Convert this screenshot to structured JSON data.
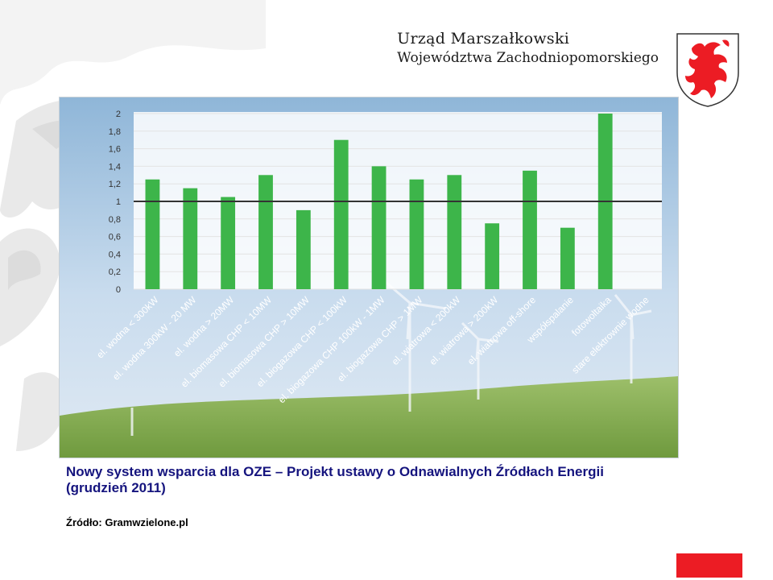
{
  "header": {
    "line1": "Urząd Marszałkowski",
    "line2": "Województwa Zachodniopomorskiego"
  },
  "caption": {
    "part1": "Nowy system wsparcia dla OZE",
    "dash": " – ",
    "part2": "Projekt ustawy o Odnawialnych Źródłach Energii",
    "part3": "(grudzień 2011)"
  },
  "source": "Źródło: Gramwzielone.pl",
  "colors": {
    "bar": "#3db54a",
    "accent": "#ec1c24",
    "caption_blue": "#15147e"
  },
  "chart_data": {
    "type": "bar",
    "categories": [
      "el. wodna < 300kW",
      "el. wodna 300kW - 20 MW",
      "el. wodna > 20MW",
      "el. biomasowa CHP < 10MW",
      "el. biomasowa CHP > 10MW",
      "el. biogazowa CHP < 100kW",
      "el. biogazowa CHP 100kW - 1MW",
      "el. biogazowa CHP > 1MW",
      "el. wiatrowa < 200kW",
      "el. wiatrowa > 200kW",
      "el. wiatrowa off-shore",
      "współspalanie",
      "fotowoltaika",
      "stare elektrownie wodne"
    ],
    "values": [
      1.25,
      1.15,
      1.05,
      1.3,
      0.9,
      1.7,
      1.4,
      1.25,
      1.3,
      0.75,
      1.35,
      0.7,
      2.0,
      0
    ],
    "yticks": [
      "0",
      "0,2",
      "0,4",
      "0,6",
      "0,8",
      "1",
      "1,2",
      "1,4",
      "1,6",
      "1,8",
      "2"
    ],
    "ylim": [
      0,
      2
    ],
    "reference_line": 1,
    "grid": true
  }
}
